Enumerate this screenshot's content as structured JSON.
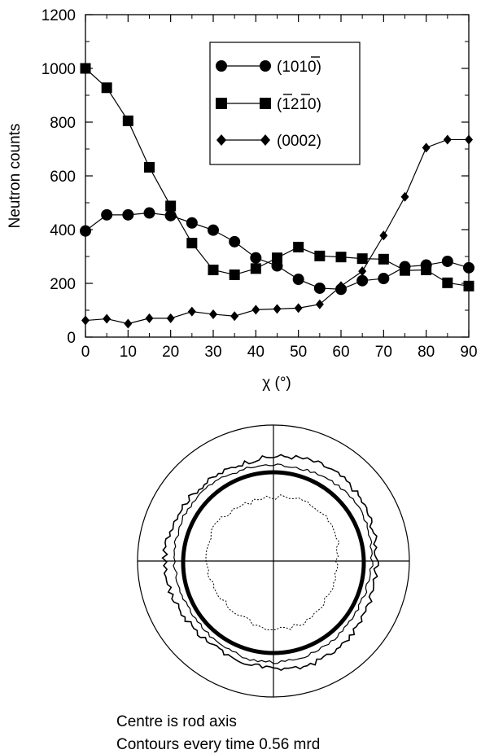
{
  "chart_data": [
    {
      "type": "line",
      "xlabel": "χ (°)",
      "ylabel": "Neutron counts",
      "xlim": [
        0,
        90
      ],
      "ylim": [
        0,
        1200
      ],
      "xticks": [
        0,
        10,
        20,
        30,
        40,
        50,
        60,
        70,
        80,
        90
      ],
      "yticks": [
        0,
        200,
        400,
        600,
        800,
        1000,
        1200
      ],
      "grid": false,
      "legend_position": "top-center",
      "series": [
        {
          "name": "(1010)",
          "marker": "circle",
          "overbar_index": 3,
          "x": [
            0,
            5,
            10,
            15,
            20,
            25,
            30,
            35,
            40,
            45,
            50,
            55,
            60,
            65,
            70,
            75,
            80,
            85,
            90
          ],
          "y": [
            395,
            455,
            455,
            462,
            452,
            425,
            398,
            355,
            295,
            265,
            215,
            182,
            178,
            210,
            218,
            262,
            268,
            282,
            258
          ]
        },
        {
          "name": "(1210)",
          "marker": "square",
          "overbar_index": [
            1,
            3
          ],
          "x": [
            0,
            5,
            10,
            15,
            20,
            25,
            30,
            35,
            40,
            45,
            50,
            55,
            60,
            65,
            70,
            75,
            80,
            85,
            90
          ],
          "y": [
            1000,
            928,
            805,
            632,
            488,
            350,
            250,
            232,
            255,
            295,
            335,
            302,
            298,
            292,
            290,
            248,
            250,
            202,
            190
          ]
        },
        {
          "name": "(0002)",
          "marker": "diamond",
          "x": [
            0,
            5,
            10,
            15,
            20,
            25,
            30,
            35,
            40,
            45,
            50,
            55,
            60,
            65,
            70,
            75,
            80,
            85,
            90
          ],
          "y": [
            62,
            68,
            50,
            70,
            70,
            95,
            85,
            78,
            102,
            105,
            108,
            122,
            190,
            245,
            378,
            522,
            705,
            735,
            735
          ]
        }
      ]
    },
    {
      "type": "polar-figure",
      "caption_lines": [
        "Centre is rod axis",
        "Contours every time 0.56 mrd"
      ],
      "contours": [
        "solid-thin",
        "solid-thin",
        "solid-thick",
        "dotted"
      ]
    }
  ]
}
